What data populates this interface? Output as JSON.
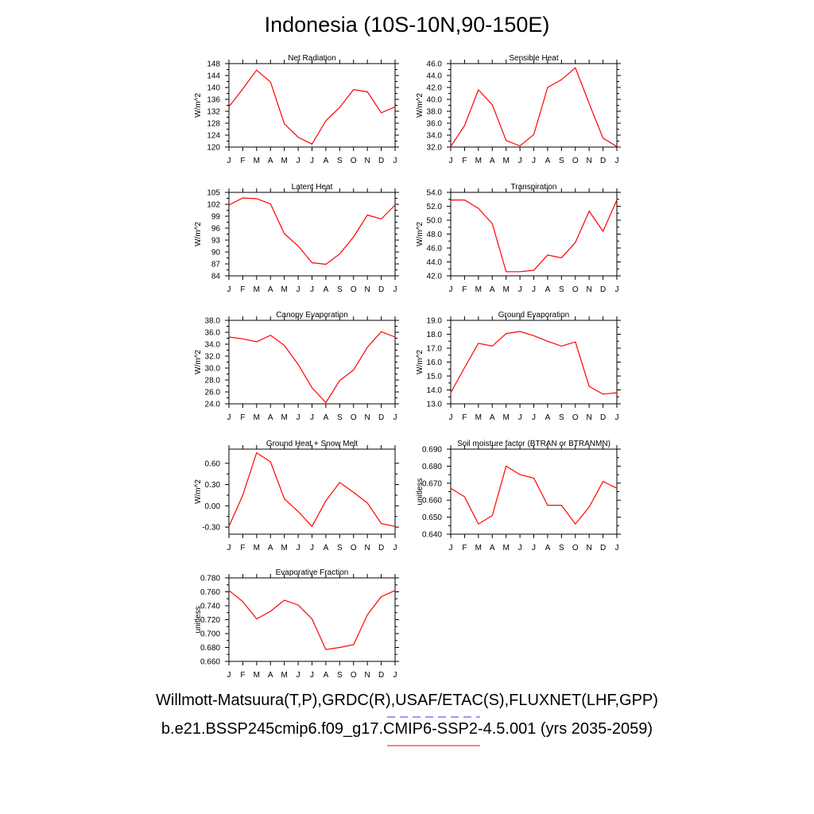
{
  "title": "Indonesia (10S-10N,90-150E)",
  "legend": {
    "obs_label": "Willmott-Matsuura(T,P),GRDC(R),USAF/ETAC(S),FLUXNET(LHF,GPP)",
    "model_label": "b.e21.BSSP245cmip6.f09_g17.CMIP6-SSP2-4.5.001 (yrs 2035-2059)",
    "obs_color": "#3333ff",
    "model_color": "#ff0000"
  },
  "months": [
    "J",
    "F",
    "M",
    "A",
    "M",
    "J",
    "J",
    "A",
    "S",
    "O",
    "N",
    "D",
    "J"
  ],
  "chart_data": [
    {
      "type": "line",
      "title": "Net Radiation",
      "ylabel": "W/m^2",
      "ylim": [
        120,
        148
      ],
      "yticks": [
        "120",
        "124",
        "128",
        "132",
        "136",
        "140",
        "144",
        "148"
      ],
      "categories": [
        "J",
        "F",
        "M",
        "A",
        "M",
        "J",
        "J",
        "A",
        "S",
        "O",
        "N",
        "D",
        "J"
      ],
      "values": [
        133.5,
        139.5,
        145.8,
        141.8,
        127.8,
        123.3,
        121.0,
        128.8,
        133.3,
        139.3,
        138.5,
        131.5,
        133.5
      ],
      "color": "#ff0000"
    },
    {
      "type": "line",
      "title": "Sensible Heat",
      "ylabel": "W/m^2",
      "ylim": [
        32,
        46
      ],
      "yticks": [
        "32.0",
        "34.0",
        "36.0",
        "38.0",
        "40.0",
        "42.0",
        "44.0",
        "46.0"
      ],
      "categories": [
        "J",
        "F",
        "M",
        "A",
        "M",
        "J",
        "J",
        "A",
        "S",
        "O",
        "N",
        "D",
        "J"
      ],
      "values": [
        32.1,
        35.6,
        41.6,
        39.1,
        33.1,
        32.2,
        34.1,
        42.0,
        43.3,
        45.3,
        39.3,
        33.5,
        32.1
      ],
      "color": "#ff0000"
    },
    {
      "type": "line",
      "title": "Latent Heat",
      "ylabel": "W/m^2",
      "ylim": [
        84,
        105
      ],
      "yticks": [
        "84",
        "87",
        "90",
        "93",
        "96",
        "99",
        "102",
        "105"
      ],
      "categories": [
        "J",
        "F",
        "M",
        "A",
        "M",
        "J",
        "J",
        "A",
        "S",
        "O",
        "N",
        "D",
        "J"
      ],
      "values": [
        101.8,
        103.6,
        103.4,
        102.1,
        94.6,
        91.5,
        87.3,
        86.9,
        89.5,
        93.8,
        99.3,
        98.3,
        101.8
      ],
      "color": "#ff0000"
    },
    {
      "type": "line",
      "title": "Transpiration",
      "ylabel": "W/m^2",
      "ylim": [
        42,
        54
      ],
      "yticks": [
        "42.0",
        "44.0",
        "46.0",
        "48.0",
        "50.0",
        "52.0",
        "54.0"
      ],
      "categories": [
        "J",
        "F",
        "M",
        "A",
        "M",
        "J",
        "J",
        "A",
        "S",
        "O",
        "N",
        "D",
        "J"
      ],
      "values": [
        52.9,
        52.9,
        51.7,
        49.5,
        42.6,
        42.6,
        42.8,
        45.0,
        44.6,
        46.8,
        51.3,
        48.4,
        52.9
      ],
      "color": "#ff0000"
    },
    {
      "type": "line",
      "title": "Canopy Evaporation",
      "ylabel": "W/m^2",
      "ylim": [
        24,
        38
      ],
      "yticks": [
        "24.0",
        "26.0",
        "28.0",
        "30.0",
        "32.0",
        "34.0",
        "36.0",
        "38.0"
      ],
      "categories": [
        "J",
        "F",
        "M",
        "A",
        "M",
        "J",
        "J",
        "A",
        "S",
        "O",
        "N",
        "D",
        "J"
      ],
      "values": [
        35.2,
        34.9,
        34.4,
        35.5,
        33.8,
        30.6,
        26.7,
        24.2,
        27.9,
        29.7,
        33.5,
        36.1,
        35.2
      ],
      "color": "#ff0000"
    },
    {
      "type": "line",
      "title": "Ground Evaporation",
      "ylabel": "W/m^2",
      "ylim": [
        13,
        19
      ],
      "yticks": [
        "13.0",
        "14.0",
        "15.0",
        "16.0",
        "17.0",
        "18.0",
        "19.0"
      ],
      "categories": [
        "J",
        "F",
        "M",
        "A",
        "M",
        "J",
        "J",
        "A",
        "S",
        "O",
        "N",
        "D",
        "J"
      ],
      "values": [
        13.8,
        15.6,
        17.35,
        17.15,
        18.05,
        18.2,
        17.9,
        17.5,
        17.15,
        17.45,
        14.25,
        13.7,
        13.8
      ],
      "color": "#ff0000"
    },
    {
      "type": "line",
      "title": "Ground Heat + Snow Melt",
      "ylabel": "W/m^2",
      "ylim": [
        -0.4,
        0.8
      ],
      "yticks": [
        "-0.30",
        "0.00",
        "0.30",
        "0.60"
      ],
      "ytick_values": [
        -0.3,
        0.0,
        0.3,
        0.6
      ],
      "categories": [
        "J",
        "F",
        "M",
        "A",
        "M",
        "J",
        "J",
        "A",
        "S",
        "O",
        "N",
        "D",
        "J"
      ],
      "values": [
        -0.29,
        0.15,
        0.75,
        0.62,
        0.1,
        -0.08,
        -0.29,
        0.07,
        0.33,
        0.19,
        0.04,
        -0.25,
        -0.29
      ],
      "color": "#ff0000"
    },
    {
      "type": "line",
      "title": "Soil moisture factor (BTRAN or BTRANMN)",
      "ylabel": "unitless",
      "ylim": [
        0.64,
        0.69
      ],
      "yticks": [
        "0.640",
        "0.650",
        "0.660",
        "0.670",
        "0.680",
        "0.690"
      ],
      "categories": [
        "J",
        "F",
        "M",
        "A",
        "M",
        "J",
        "J",
        "A",
        "S",
        "O",
        "N",
        "D",
        "J"
      ],
      "values": [
        0.667,
        0.662,
        0.646,
        0.651,
        0.68,
        0.675,
        0.673,
        0.657,
        0.657,
        0.646,
        0.656,
        0.671,
        0.667
      ],
      "color": "#ff0000"
    },
    {
      "type": "line",
      "title": "Evaporative Fraction",
      "ylabel": "unitless",
      "ylim": [
        0.66,
        0.78
      ],
      "yticks": [
        "0.660",
        "0.680",
        "0.700",
        "0.720",
        "0.740",
        "0.760",
        "0.780"
      ],
      "categories": [
        "J",
        "F",
        "M",
        "A",
        "M",
        "J",
        "J",
        "A",
        "S",
        "O",
        "N",
        "D",
        "J"
      ],
      "values": [
        0.762,
        0.746,
        0.721,
        0.732,
        0.748,
        0.741,
        0.721,
        0.677,
        0.68,
        0.684,
        0.727,
        0.753,
        0.762
      ],
      "color": "#ff0000"
    }
  ]
}
